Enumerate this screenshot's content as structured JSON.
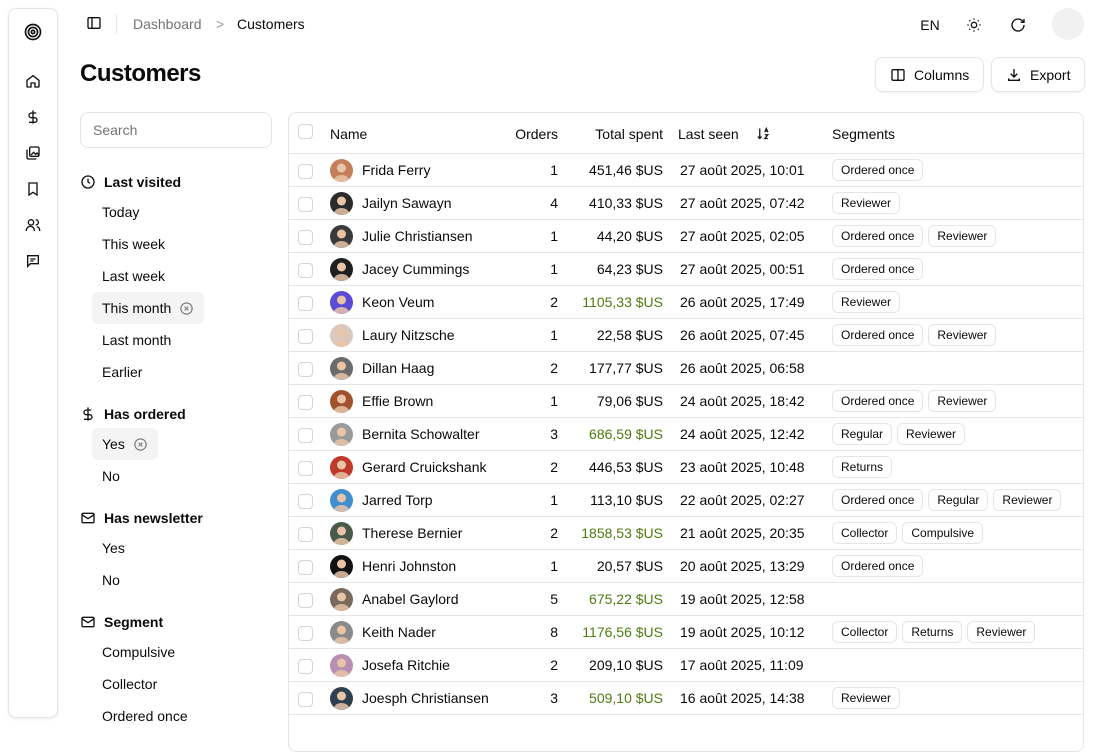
{
  "breadcrumb": {
    "parent": "Dashboard",
    "separator": ">",
    "current": "Customers"
  },
  "topbar": {
    "lang": "EN"
  },
  "page": {
    "title": "Customers"
  },
  "toolbar": {
    "columns_label": "Columns",
    "export_label": "Export"
  },
  "search": {
    "placeholder": "Search",
    "value": ""
  },
  "rail_icons": [
    "spiral-logo-icon",
    "home-icon",
    "dollar-icon",
    "gallery-icon",
    "bookmark-icon",
    "users-icon",
    "message-icon"
  ],
  "filters": {
    "last_visited": {
      "title": "Last visited",
      "items": [
        "Today",
        "This week",
        "Last week",
        "This month",
        "Last month",
        "Earlier"
      ],
      "active": "This month"
    },
    "has_ordered": {
      "title": "Has ordered",
      "items": [
        "Yes",
        "No"
      ],
      "active": "Yes"
    },
    "has_newsletter": {
      "title": "Has newsletter",
      "items": [
        "Yes",
        "No"
      ]
    },
    "segment": {
      "title": "Segment",
      "items": [
        "Compulsive",
        "Collector",
        "Ordered once"
      ]
    }
  },
  "table": {
    "headers": {
      "name": "Name",
      "orders": "Orders",
      "total": "Total spent",
      "last_seen": "Last seen",
      "segments": "Segments"
    },
    "rows": [
      {
        "name": "Frida Ferry",
        "orders": "1",
        "total": "451,46 $US",
        "highlight": false,
        "last_seen": "27 août 2025, 10:01",
        "segments": [
          "Ordered once"
        ],
        "avatar_color": "#c47f5a"
      },
      {
        "name": "Jailyn Sawayn",
        "orders": "4",
        "total": "410,33 $US",
        "highlight": false,
        "last_seen": "27 août 2025, 07:42",
        "segments": [
          "Reviewer"
        ],
        "avatar_color": "#2b2b2b"
      },
      {
        "name": "Julie Christiansen",
        "orders": "1",
        "total": "44,20 $US",
        "highlight": false,
        "last_seen": "27 août 2025, 02:05",
        "segments": [
          "Ordered once",
          "Reviewer"
        ],
        "avatar_color": "#3a3a3a"
      },
      {
        "name": "Jacey Cummings",
        "orders": "1",
        "total": "64,23 $US",
        "highlight": false,
        "last_seen": "27 août 2025, 00:51",
        "segments": [
          "Ordered once"
        ],
        "avatar_color": "#1f1f1f"
      },
      {
        "name": "Keon Veum",
        "orders": "2",
        "total": "1105,33 $US",
        "highlight": true,
        "last_seen": "26 août 2025, 17:49",
        "segments": [
          "Reviewer"
        ],
        "avatar_color": "#5b4bd6"
      },
      {
        "name": "Laury Nitzsche",
        "orders": "1",
        "total": "22,58 $US",
        "highlight": false,
        "last_seen": "26 août 2025, 07:45",
        "segments": [
          "Ordered once",
          "Reviewer"
        ],
        "avatar_color": "#d9c8bd"
      },
      {
        "name": "Dillan Haag",
        "orders": "2",
        "total": "177,77 $US",
        "highlight": false,
        "last_seen": "26 août 2025, 06:58",
        "segments": [],
        "avatar_color": "#6b6b6b"
      },
      {
        "name": "Effie Brown",
        "orders": "1",
        "total": "79,06 $US",
        "highlight": false,
        "last_seen": "24 août 2025, 18:42",
        "segments": [
          "Ordered once",
          "Reviewer"
        ],
        "avatar_color": "#a0522d"
      },
      {
        "name": "Bernita Schowalter",
        "orders": "3",
        "total": "686,59 $US",
        "highlight": true,
        "last_seen": "24 août 2025, 12:42",
        "segments": [
          "Regular",
          "Reviewer"
        ],
        "avatar_color": "#9a9a9a"
      },
      {
        "name": "Gerard Cruickshank",
        "orders": "2",
        "total": "446,53 $US",
        "highlight": false,
        "last_seen": "23 août 2025, 10:48",
        "segments": [
          "Returns"
        ],
        "avatar_color": "#c0392b"
      },
      {
        "name": "Jarred Torp",
        "orders": "1",
        "total": "113,10 $US",
        "highlight": false,
        "last_seen": "22 août 2025, 02:27",
        "segments": [
          "Ordered once",
          "Regular",
          "Reviewer"
        ],
        "avatar_color": "#3e8ed0"
      },
      {
        "name": "Therese Bernier",
        "orders": "2",
        "total": "1858,53 $US",
        "highlight": true,
        "last_seen": "21 août 2025, 20:35",
        "segments": [
          "Collector",
          "Compulsive"
        ],
        "avatar_color": "#4a5a4a"
      },
      {
        "name": "Henri Johnston",
        "orders": "1",
        "total": "20,57 $US",
        "highlight": false,
        "last_seen": "20 août 2025, 13:29",
        "segments": [
          "Ordered once"
        ],
        "avatar_color": "#111111"
      },
      {
        "name": "Anabel Gaylord",
        "orders": "5",
        "total": "675,22 $US",
        "highlight": true,
        "last_seen": "19 août 2025, 12:58",
        "segments": [],
        "avatar_color": "#7a6a5a"
      },
      {
        "name": "Keith Nader",
        "orders": "8",
        "total": "1176,56 $US",
        "highlight": true,
        "last_seen": "19 août 2025, 10:12",
        "segments": [
          "Collector",
          "Returns",
          "Reviewer"
        ],
        "avatar_color": "#8a8a8a"
      },
      {
        "name": "Josefa Ritchie",
        "orders": "2",
        "total": "209,10 $US",
        "highlight": false,
        "last_seen": "17 août 2025, 11:09",
        "segments": [],
        "avatar_color": "#b88fb0"
      },
      {
        "name": "Joesph Christiansen",
        "orders": "3",
        "total": "509,10 $US",
        "highlight": true,
        "last_seen": "16 août 2025, 14:38",
        "segments": [
          "Reviewer"
        ],
        "avatar_color": "#2f3f4f"
      }
    ]
  },
  "colors": {
    "highlight_total": "#4d7c0f",
    "border": "#e5e5e5",
    "muted": "#737373"
  }
}
